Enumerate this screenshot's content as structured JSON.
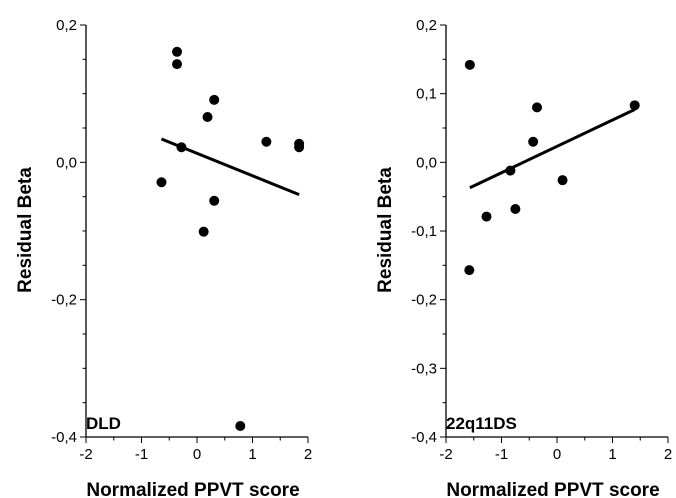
{
  "chart_data": [
    {
      "type": "scatter",
      "label": "DLD",
      "xlabel": "Normalized PPVT score",
      "ylabel": "Residual Beta",
      "xlim": [
        -2,
        2
      ],
      "ylim": [
        -0.4,
        0.2
      ],
      "xticks": [
        "-2",
        "-1",
        "0",
        "1",
        "2"
      ],
      "yticks": [
        "0,2",
        "0,0",
        "-0,2",
        "-0,4"
      ],
      "ytick_values": [
        0.2,
        0.0,
        -0.2,
        -0.4
      ],
      "points": [
        {
          "x": -0.36,
          "y": 0.161
        },
        {
          "x": -0.36,
          "y": 0.143
        },
        {
          "x": 0.31,
          "y": 0.091
        },
        {
          "x": 0.19,
          "y": 0.066
        },
        {
          "x": 1.25,
          "y": 0.03
        },
        {
          "x": 1.84,
          "y": 0.027
        },
        {
          "x": 1.84,
          "y": 0.022
        },
        {
          "x": -0.28,
          "y": 0.022
        },
        {
          "x": -0.64,
          "y": -0.029
        },
        {
          "x": 0.31,
          "y": -0.056
        },
        {
          "x": 0.12,
          "y": -0.101
        },
        {
          "x": 0.78,
          "y": -0.384
        }
      ],
      "fit_line": {
        "x": [
          -0.64,
          1.84
        ],
        "y": [
          0.034,
          -0.047
        ]
      }
    },
    {
      "type": "scatter",
      "label": "22q11DS",
      "xlabel": "Normalized PPVT score",
      "ylabel": "Residual Beta",
      "xlim": [
        -2,
        2
      ],
      "ylim": [
        -0.4,
        0.2
      ],
      "xticks": [
        "-2",
        "-1",
        "0",
        "1",
        "2"
      ],
      "yticks": [
        "0,2",
        "0,1",
        "0,0",
        "-0,1",
        "-0,2",
        "-0,3",
        "-0,4"
      ],
      "ytick_values": [
        0.2,
        0.1,
        0.0,
        -0.1,
        -0.2,
        -0.3,
        -0.4
      ],
      "points": [
        {
          "x": -1.57,
          "y": 0.142
        },
        {
          "x": -0.36,
          "y": 0.08
        },
        {
          "x": 1.4,
          "y": 0.083
        },
        {
          "x": -0.43,
          "y": 0.03
        },
        {
          "x": -0.84,
          "y": -0.012
        },
        {
          "x": 0.1,
          "y": -0.026
        },
        {
          "x": -0.75,
          "y": -0.068
        },
        {
          "x": -1.27,
          "y": -0.079
        },
        {
          "x": -1.58,
          "y": -0.157
        }
      ],
      "fit_line": {
        "x": [
          -1.57,
          1.4
        ],
        "y": [
          -0.037,
          0.077
        ]
      }
    }
  ]
}
